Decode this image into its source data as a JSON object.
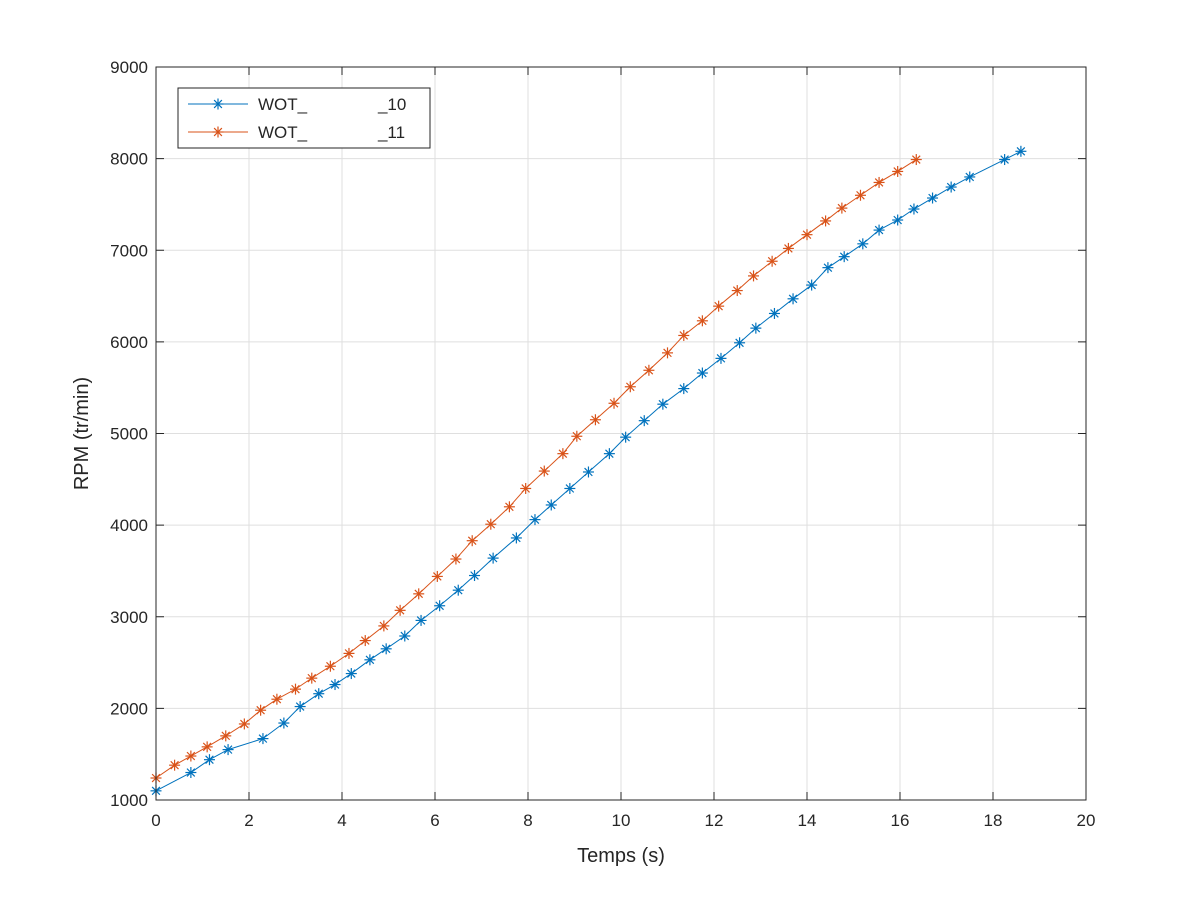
{
  "chart_data": {
    "type": "line",
    "title": "",
    "xlabel": "Temps (s)",
    "ylabel": "RPM (tr/min)",
    "xlim": [
      0,
      20
    ],
    "ylim": [
      1000,
      9000
    ],
    "xticks": [
      0,
      2,
      4,
      6,
      8,
      10,
      12,
      14,
      16,
      18,
      20
    ],
    "yticks": [
      1000,
      2000,
      3000,
      4000,
      5000,
      6000,
      7000,
      8000,
      9000
    ],
    "grid": true,
    "legend_position": "top-left",
    "marker": "asterisk",
    "series": [
      {
        "name": "WOT_               _10",
        "color": "#0072BD",
        "x": [
          0,
          0.75,
          1.15,
          1.55,
          2.3,
          2.75,
          3.1,
          3.5,
          3.85,
          4.2,
          4.6,
          4.95,
          5.35,
          5.7,
          6.1,
          6.5,
          6.85,
          7.25,
          7.75,
          8.15,
          8.5,
          8.9,
          9.3,
          9.75,
          10.1,
          10.5,
          10.9,
          11.35,
          11.75,
          12.15,
          12.55,
          12.9,
          13.3,
          13.7,
          14.1,
          14.45,
          14.8,
          15.2,
          15.55,
          15.95,
          16.3,
          16.7,
          17.1,
          17.5,
          18.25,
          18.6
        ],
        "y": [
          1100,
          1300,
          1440,
          1550,
          1670,
          1840,
          2020,
          2160,
          2260,
          2380,
          2530,
          2650,
          2790,
          2960,
          3120,
          3290,
          3450,
          3640,
          3860,
          4060,
          4220,
          4400,
          4580,
          4780,
          4960,
          5140,
          5320,
          5490,
          5660,
          5820,
          5990,
          6150,
          6310,
          6470,
          6620,
          6810,
          6930,
          7070,
          7220,
          7330,
          7450,
          7570,
          7690,
          7800,
          7990,
          8080
        ]
      },
      {
        "name": "WOT_               _11",
        "color": "#D95319",
        "x": [
          0,
          0.4,
          0.75,
          1.1,
          1.5,
          1.9,
          2.25,
          2.6,
          3.0,
          3.35,
          3.75,
          4.15,
          4.5,
          4.9,
          5.25,
          5.65,
          6.05,
          6.45,
          6.8,
          7.2,
          7.6,
          7.95,
          8.35,
          8.75,
          9.05,
          9.45,
          9.85,
          10.2,
          10.6,
          11.0,
          11.35,
          11.75,
          12.1,
          12.5,
          12.85,
          13.25,
          13.6,
          14.0,
          14.4,
          14.75,
          15.15,
          15.55,
          15.95,
          16.35
        ],
        "y": [
          1240,
          1380,
          1480,
          1580,
          1700,
          1830,
          1980,
          2100,
          2210,
          2330,
          2460,
          2600,
          2740,
          2900,
          3070,
          3250,
          3440,
          3630,
          3830,
          4010,
          4200,
          4400,
          4590,
          4780,
          4970,
          5150,
          5330,
          5510,
          5690,
          5880,
          6070,
          6230,
          6390,
          6560,
          6720,
          6880,
          7020,
          7170,
          7320,
          7460,
          7600,
          7740,
          7860,
          7990
        ]
      }
    ]
  }
}
